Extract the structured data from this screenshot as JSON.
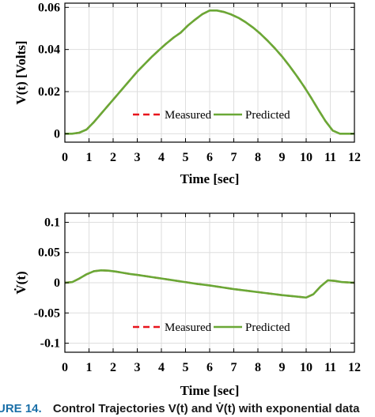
{
  "caption": {
    "prefix": "URE 14.",
    "text": "Control Trajectories V(t) and V̇(t) with exponential data"
  },
  "colors": {
    "measured": "#e8141c",
    "predicted": "#6aa836",
    "grid": "#dedede"
  },
  "chart_data": [
    {
      "type": "line",
      "ylabel": "V(t) [Volts]",
      "xlabel": "Time [sec]",
      "xlim": [
        0,
        12
      ],
      "ylim": [
        -0.004,
        0.062
      ],
      "xticks": [
        0,
        1,
        2,
        3,
        4,
        5,
        6,
        7,
        8,
        9,
        10,
        11,
        12
      ],
      "yticks": [
        0,
        0.02,
        0.04,
        0.06
      ],
      "ytick_labels": [
        "0",
        "0.02",
        "0.04",
        "0.06"
      ],
      "grid": true,
      "legend": {
        "placement": "bottom-center",
        "orientation": "horizontal"
      },
      "x": [
        0,
        0.3,
        0.6,
        0.9,
        1.2,
        1.5,
        1.8,
        2.1,
        2.4,
        2.7,
        3,
        3.3,
        3.6,
        3.9,
        4.2,
        4.5,
        4.8,
        5.1,
        5.4,
        5.7,
        6,
        6.3,
        6.6,
        6.9,
        7.2,
        7.5,
        7.8,
        8.1,
        8.4,
        8.7,
        9,
        9.3,
        9.6,
        9.9,
        10.2,
        10.5,
        10.8,
        11.1,
        11.4,
        11.7,
        12
      ],
      "series": [
        {
          "name": "Measured",
          "style": "dashed",
          "color": "#e8141c",
          "values": [
            0,
            0,
            0.0005,
            0.002,
            0.0055,
            0.0095,
            0.0135,
            0.0175,
            0.0215,
            0.0255,
            0.0295,
            0.033,
            0.0365,
            0.0397,
            0.0428,
            0.0456,
            0.048,
            0.0514,
            0.0542,
            0.0568,
            0.0585,
            0.0585,
            0.0578,
            0.0566,
            0.055,
            0.0529,
            0.0504,
            0.0475,
            0.0442,
            0.0406,
            0.0367,
            0.0323,
            0.0276,
            0.0226,
            0.0172,
            0.0115,
            0.006,
            0.0015,
            0,
            0,
            0
          ]
        },
        {
          "name": "Predicted",
          "style": "solid",
          "color": "#6aa836",
          "values": [
            0,
            0,
            0.0005,
            0.002,
            0.0055,
            0.0095,
            0.0135,
            0.0175,
            0.0215,
            0.0255,
            0.0295,
            0.033,
            0.0365,
            0.0397,
            0.0428,
            0.0456,
            0.048,
            0.0514,
            0.0542,
            0.0568,
            0.0585,
            0.0585,
            0.0578,
            0.0566,
            0.055,
            0.0529,
            0.0504,
            0.0475,
            0.0442,
            0.0406,
            0.0367,
            0.0323,
            0.0276,
            0.0226,
            0.0172,
            0.0115,
            0.006,
            0.0015,
            0,
            0,
            0
          ]
        }
      ]
    },
    {
      "type": "line",
      "ylabel": "V̇(t)",
      "xlabel": "Time [sec]",
      "xlim": [
        0,
        12
      ],
      "ylim": [
        -0.115,
        0.115
      ],
      "xticks": [
        0,
        1,
        2,
        3,
        4,
        5,
        6,
        7,
        8,
        9,
        10,
        11,
        12
      ],
      "yticks": [
        -0.1,
        -0.05,
        0,
        0.05,
        0.1
      ],
      "ytick_labels": [
        "-0.1",
        "-0.05",
        "0",
        "0.05",
        "0.1"
      ],
      "grid": true,
      "legend": {
        "placement": "bottom-center",
        "orientation": "horizontal"
      },
      "x": [
        0,
        0.3,
        0.6,
        0.9,
        1.2,
        1.5,
        1.8,
        2.1,
        2.4,
        2.7,
        3,
        3.5,
        4,
        4.5,
        5,
        5.5,
        6,
        6.5,
        7,
        7.5,
        8,
        8.5,
        9,
        9.5,
        10,
        10.3,
        10.6,
        10.9,
        11.2,
        11.5,
        12
      ],
      "series": [
        {
          "name": "Measured",
          "style": "dashed",
          "color": "#e8141c",
          "values": [
            0,
            0.001,
            0.007,
            0.014,
            0.019,
            0.0205,
            0.02,
            0.0185,
            0.0165,
            0.0145,
            0.013,
            0.01,
            0.007,
            0.004,
            0.001,
            -0.002,
            -0.0045,
            -0.0075,
            -0.0105,
            -0.013,
            -0.0155,
            -0.018,
            -0.0205,
            -0.0225,
            -0.0245,
            -0.019,
            -0.006,
            0.004,
            0.003,
            0.001,
            0
          ]
        },
        {
          "name": "Predicted",
          "style": "solid",
          "color": "#6aa836",
          "values": [
            0,
            0.001,
            0.007,
            0.014,
            0.019,
            0.0205,
            0.02,
            0.0185,
            0.0165,
            0.0145,
            0.013,
            0.01,
            0.007,
            0.004,
            0.001,
            -0.002,
            -0.0045,
            -0.0075,
            -0.0105,
            -0.013,
            -0.0155,
            -0.018,
            -0.0205,
            -0.0225,
            -0.0245,
            -0.019,
            -0.006,
            0.004,
            0.003,
            0.001,
            0
          ]
        }
      ]
    }
  ]
}
